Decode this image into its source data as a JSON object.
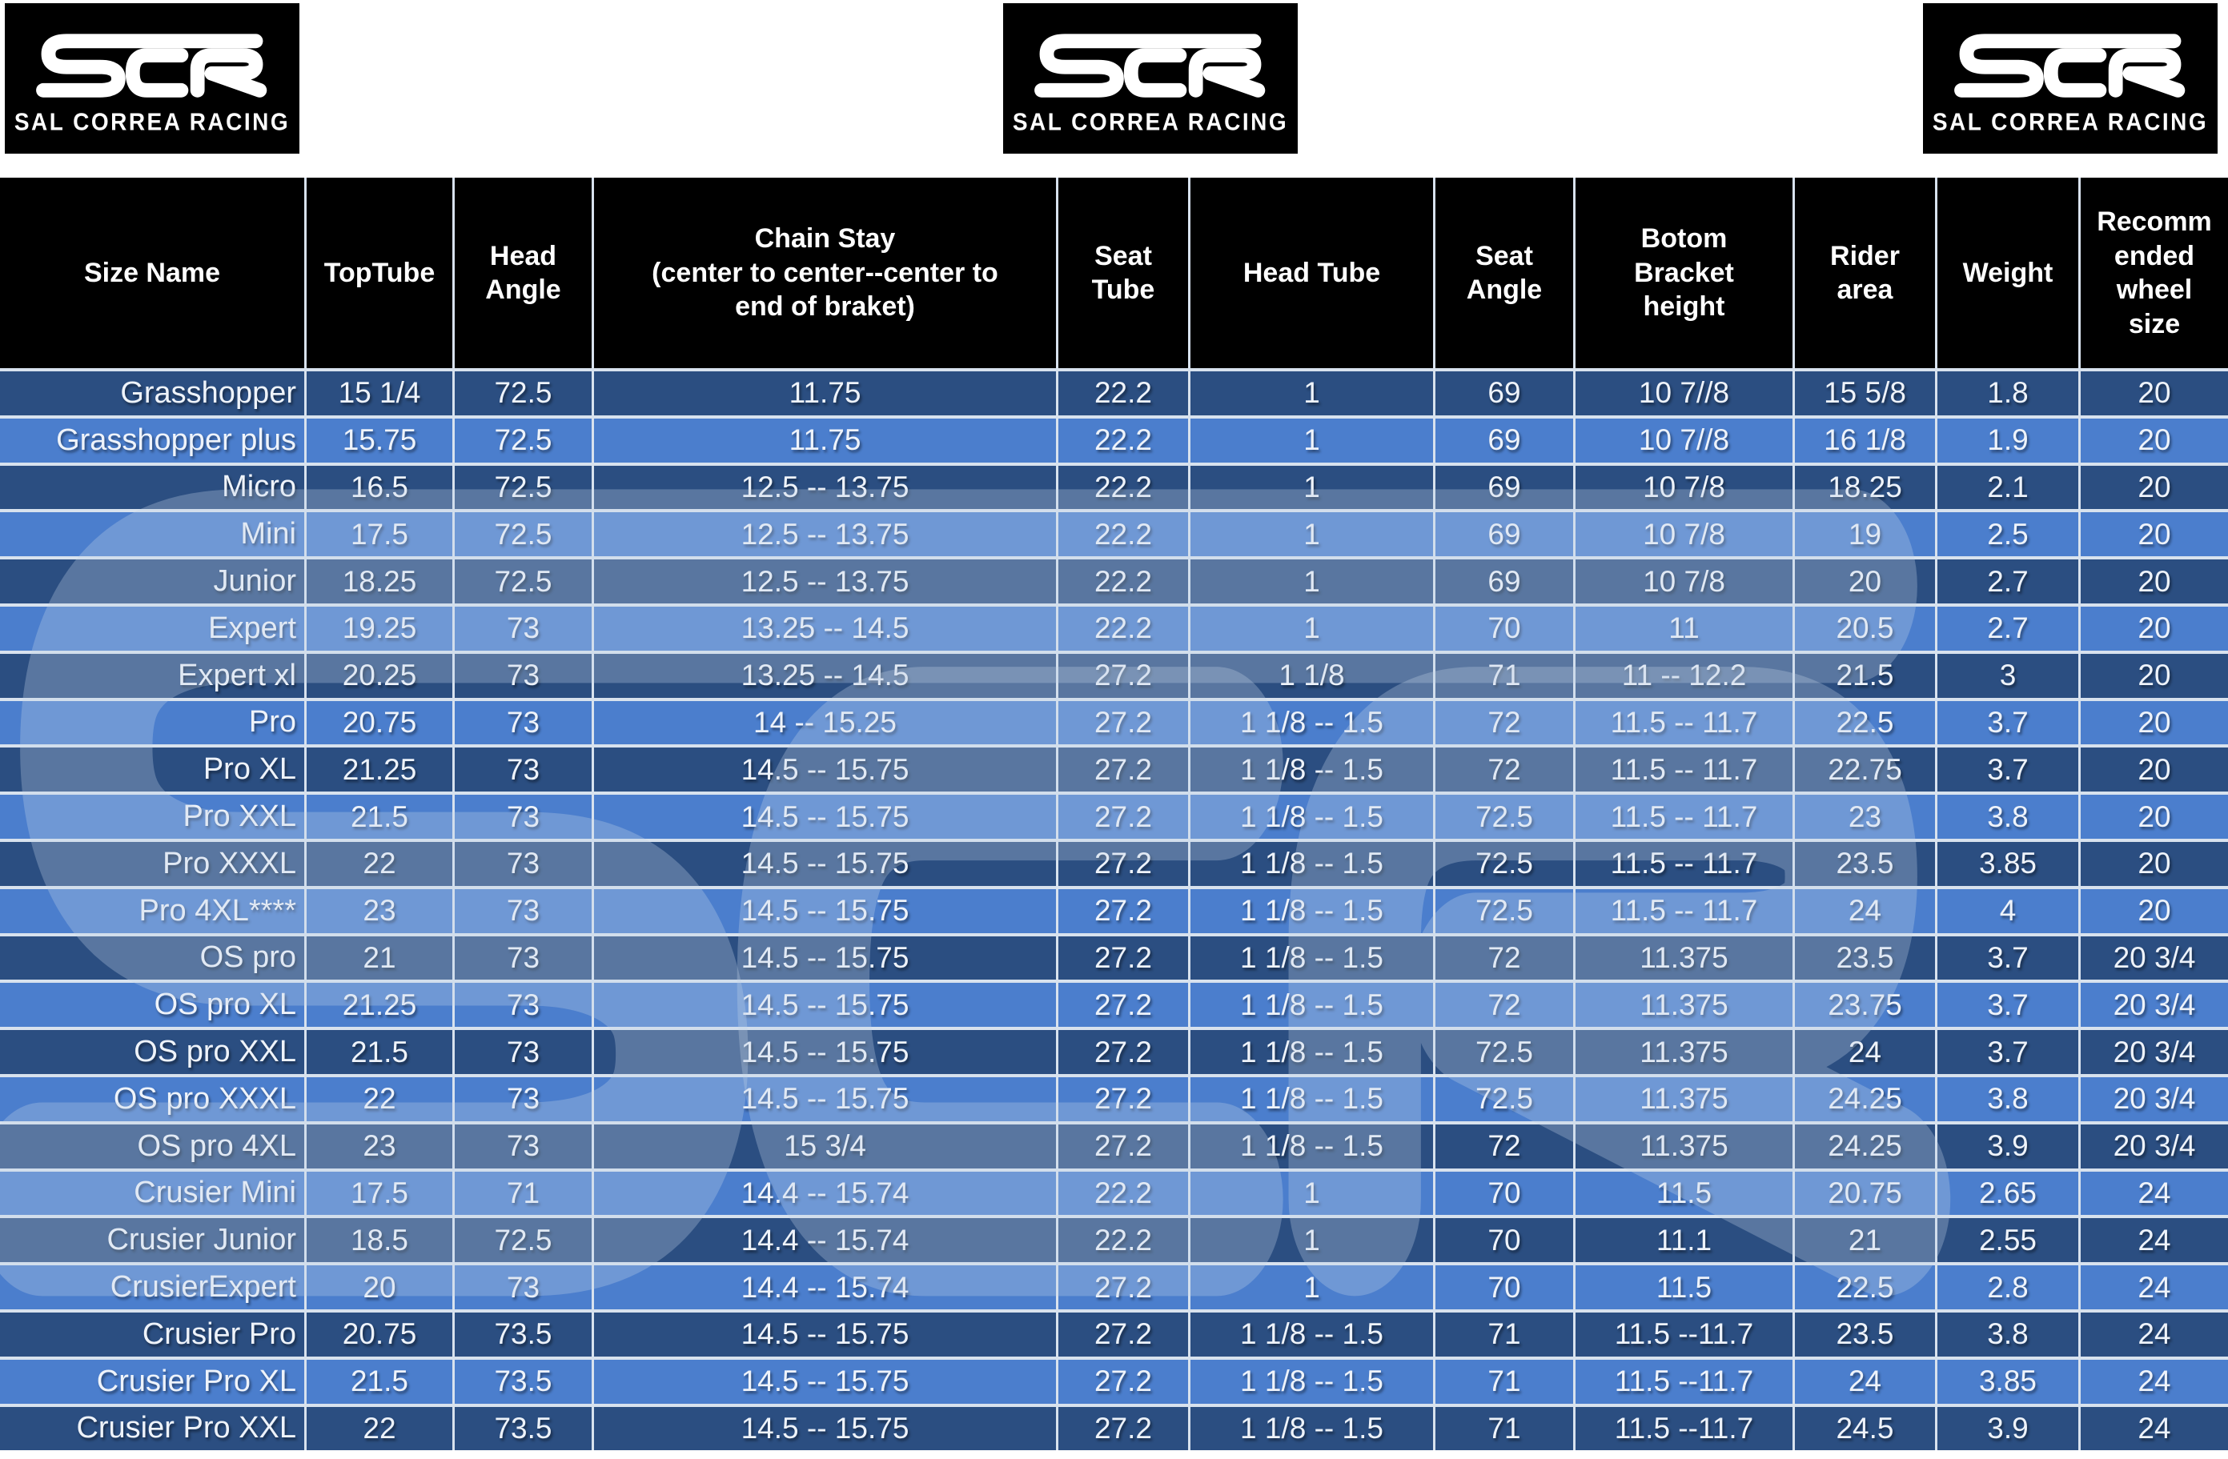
{
  "logo": {
    "abbr": "SCR",
    "caption": "SAL CORREA RACING"
  },
  "colors": {
    "page_bg": "#ffffff",
    "header_bg": "#000000",
    "row_dark": "#2b4e81",
    "row_light": "#4b7ecd",
    "grid_line": "#d8e2ee",
    "cell_text": "#eef3fa",
    "watermark": "rgba(196,212,232,0.3)"
  },
  "chart_data": {
    "type": "table",
    "columns": [
      "Size Name",
      "TopTube",
      "Head\nAngle",
      "Chain Stay\n(center to center--center to\nend of braket)",
      "Seat\nTube",
      "Head Tube",
      "Seat\nAngle",
      "Botom\nBracket\nheight",
      "Rider\narea",
      "Weight",
      "Recomm\nended\nwheel\nsize"
    ],
    "rows": [
      [
        "Grasshopper",
        "15 1/4",
        "72.5",
        "11.75",
        "22.2",
        "1",
        "69",
        "10 7//8",
        "15 5/8",
        "1.8",
        "20"
      ],
      [
        "Grasshopper plus",
        "15.75",
        "72.5",
        "11.75",
        "22.2",
        "1",
        "69",
        "10 7//8",
        "16 1/8",
        "1.9",
        "20"
      ],
      [
        "Micro",
        "16.5",
        "72.5",
        "12.5 -- 13.75",
        "22.2",
        "1",
        "69",
        "10 7/8",
        "18.25",
        "2.1",
        "20"
      ],
      [
        "Mini",
        "17.5",
        "72.5",
        "12.5 -- 13.75",
        "22.2",
        "1",
        "69",
        "10 7/8",
        "19",
        "2.5",
        "20"
      ],
      [
        "Junior",
        "18.25",
        "72.5",
        "12.5 -- 13.75",
        "22.2",
        "1",
        "69",
        "10 7/8",
        "20",
        "2.7",
        "20"
      ],
      [
        "Expert",
        "19.25",
        "73",
        "13.25 -- 14.5",
        "22.2",
        "1",
        "70",
        "11",
        "20.5",
        "2.7",
        "20"
      ],
      [
        "Expert xl",
        "20.25",
        "73",
        "13.25 -- 14.5",
        "27.2",
        "1 1/8",
        "71",
        "11 -- 12.2",
        "21.5",
        "3",
        "20"
      ],
      [
        "Pro",
        "20.75",
        "73",
        "14 -- 15.25",
        "27.2",
        "1 1/8 -- 1.5",
        "72",
        "11.5 -- 11.7",
        "22.5",
        "3.7",
        "20"
      ],
      [
        "Pro XL",
        "21.25",
        "73",
        "14.5 -- 15.75",
        "27.2",
        "1 1/8 -- 1.5",
        "72",
        "11.5 -- 11.7",
        "22.75",
        "3.7",
        "20"
      ],
      [
        "Pro XXL",
        "21.5",
        "73",
        "14.5 -- 15.75",
        "27.2",
        "1 1/8 -- 1.5",
        "72.5",
        "11.5 -- 11.7",
        "23",
        "3.8",
        "20"
      ],
      [
        "Pro XXXL",
        "22",
        "73",
        "14.5 -- 15.75",
        "27.2",
        "1 1/8 -- 1.5",
        "72.5",
        "11.5 -- 11.7",
        "23.5",
        "3.85",
        "20"
      ],
      [
        "Pro 4XL****",
        "23",
        "73",
        "14.5 -- 15.75",
        "27.2",
        "1 1/8 -- 1.5",
        "72.5",
        "11.5 -- 11.7",
        "24",
        "4",
        "20"
      ],
      [
        "OS pro",
        "21",
        "73",
        "14.5 -- 15.75",
        "27.2",
        "1 1/8 -- 1.5",
        "72",
        "11.375",
        "23.5",
        "3.7",
        "20 3/4"
      ],
      [
        "OS pro XL",
        "21.25",
        "73",
        "14.5 -- 15.75",
        "27.2",
        "1 1/8 -- 1.5",
        "72",
        "11.375",
        "23.75",
        "3.7",
        "20 3/4"
      ],
      [
        "OS pro XXL",
        "21.5",
        "73",
        "14.5 -- 15.75",
        "27.2",
        "1 1/8 -- 1.5",
        "72.5",
        "11.375",
        "24",
        "3.7",
        "20 3/4"
      ],
      [
        "OS pro XXXL",
        "22",
        "73",
        "14.5 -- 15.75",
        "27.2",
        "1 1/8 -- 1.5",
        "72.5",
        "11.375",
        "24.25",
        "3.8",
        "20 3/4"
      ],
      [
        "OS pro 4XL",
        "23",
        "73",
        "15 3/4",
        "27.2",
        "1 1/8 -- 1.5",
        "72",
        "11.375",
        "24.25",
        "3.9",
        "20 3/4"
      ],
      [
        "Crusier Mini",
        "17.5",
        "71",
        "14.4 -- 15.74",
        "22.2",
        "1",
        "70",
        "11.5",
        "20.75",
        "2.65",
        "24"
      ],
      [
        "Crusier Junior",
        "18.5",
        "72.5",
        "14.4 -- 15.74",
        "22.2",
        "1",
        "70",
        "11.1",
        "21",
        "2.55",
        "24"
      ],
      [
        "CrusierExpert",
        "20",
        "73",
        "14.4 -- 15.74",
        "27.2",
        "1",
        "70",
        "11.5",
        "22.5",
        "2.8",
        "24"
      ],
      [
        "Crusier Pro",
        "20.75",
        "73.5",
        "14.5 -- 15.75",
        "27.2",
        "1 1/8 -- 1.5",
        "71",
        "11.5 --11.7",
        "23.5",
        "3.8",
        "24"
      ],
      [
        "Crusier Pro  XL",
        "21.5",
        "73.5",
        "14.5 -- 15.75",
        "27.2",
        "1 1/8 -- 1.5",
        "71",
        "11.5 --11.7",
        "24",
        "3.85",
        "24"
      ],
      [
        "Crusier Pro XXL",
        "22",
        "73.5",
        "14.5 -- 15.75",
        "27.2",
        "1 1/8 -- 1.5",
        "71",
        "11.5 --11.7",
        "24.5",
        "3.9",
        "24"
      ]
    ]
  }
}
